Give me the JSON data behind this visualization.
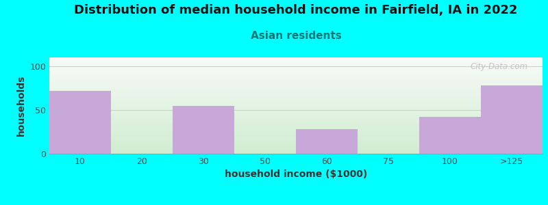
{
  "title": "Distribution of median household income in Fairfield, IA in 2022",
  "subtitle": "Asian residents",
  "xlabel": "household income ($1000)",
  "ylabel": "households",
  "background_color": "#00FFFF",
  "bar_color": "#C8A8D8",
  "categories": [
    "10",
    "20",
    "30",
    "50",
    "60",
    "75",
    "100",
    ">125"
  ],
  "values": [
    72,
    0,
    55,
    0,
    28,
    0,
    42,
    78
  ],
  "ylim": [
    0,
    110
  ],
  "yticks": [
    0,
    50,
    100
  ],
  "watermark": "City-Data.com",
  "title_fontsize": 13,
  "subtitle_fontsize": 11,
  "subtitle_color": "#007777",
  "axes_label_fontsize": 10,
  "tick_fontsize": 9,
  "grad_top": "#F8FAF8",
  "grad_bottom": "#D0EDD0"
}
